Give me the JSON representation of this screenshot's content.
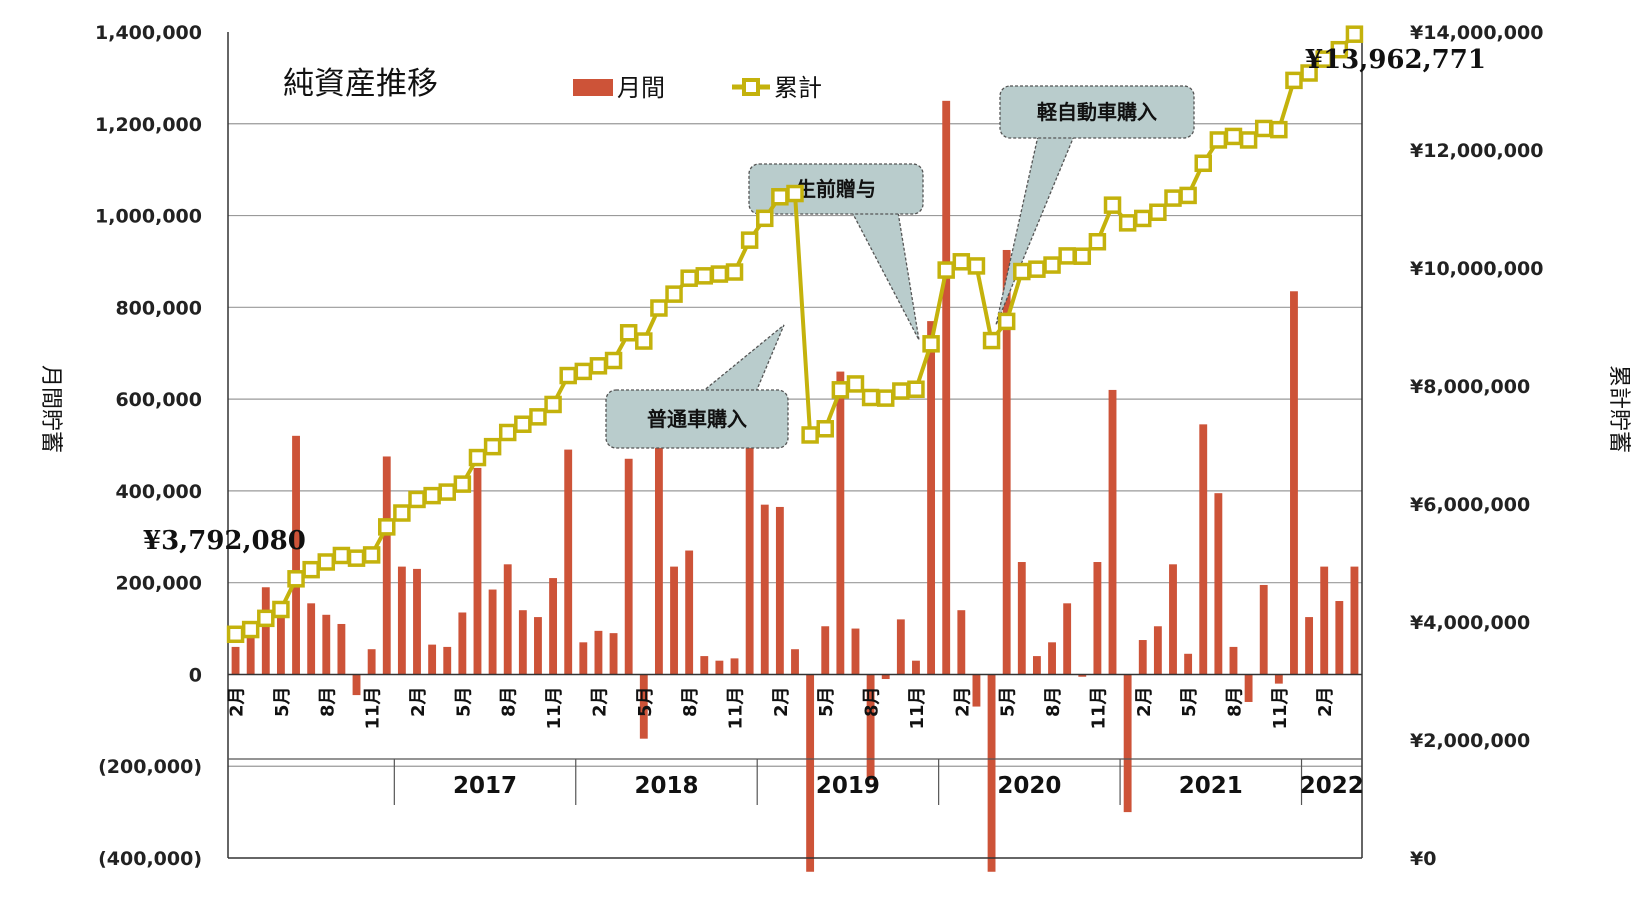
{
  "chart_data": {
    "type": "bar+line",
    "title": "純資産推移",
    "legend": {
      "placement": "top",
      "entries": [
        "月間",
        "累計"
      ]
    },
    "y_left": {
      "label": "月間貯蓄",
      "range": [
        -400000,
        1400000
      ],
      "ticks": [
        "(400,000)",
        "(200,000)",
        "0",
        "200,000",
        "400,000",
        "600,000",
        "800,000",
        "1,000,000",
        "1,200,000",
        "1,400,000"
      ]
    },
    "y_right": {
      "label": "累計貯蓄",
      "range": [
        0,
        14000000
      ],
      "ticks": [
        "¥0",
        "¥2,000,000",
        "¥4,000,000",
        "¥6,000,000",
        "¥8,000,000",
        "¥10,000,000",
        "¥12,000,000",
        "¥14,000,000"
      ]
    },
    "grid": true,
    "colors": {
      "bar": "#cd5338",
      "line": "#c4b20c",
      "marker_fill": "#ffffff",
      "callout_fill": "#b9cccc",
      "callout_stroke": "#555555"
    },
    "month_labels": [
      "2月",
      "5月",
      "8月",
      "11月"
    ],
    "years": [
      "2017",
      "2018",
      "2019",
      "2020",
      "2021",
      "2022"
    ],
    "series": [
      {
        "name": "月間",
        "type": "bar",
        "values": [
          60000,
          80000,
          190000,
          150000,
          520000,
          155000,
          130000,
          110000,
          -45000,
          55000,
          475000,
          235000,
          230000,
          65000,
          60000,
          135000,
          450000,
          185000,
          240000,
          140000,
          125000,
          210000,
          490000,
          70000,
          95000,
          90000,
          470000,
          -140000,
          560000,
          235000,
          270000,
          40000,
          30000,
          35000,
          540000,
          370000,
          365000,
          55000,
          -430000,
          105000,
          660000,
          100000,
          -230000,
          -10000,
          120000,
          30000,
          770000,
          1250000,
          140000,
          -70000,
          -430000,
          925000,
          245000,
          40000,
          70000,
          155000,
          -5000,
          245000,
          620000,
          -300000,
          75000,
          105000,
          240000,
          45000,
          545000,
          395000,
          60000,
          -60000,
          195000,
          -20000,
          835000,
          125000,
          235000,
          160000,
          235000
        ]
      },
      {
        "name": "累計",
        "type": "line",
        "values": [
          3792080,
          3872080,
          4062080,
          4212080,
          4732080,
          4887080,
          5017080,
          5127080,
          5082080,
          5137080,
          5612080,
          5847080,
          6077080,
          6142080,
          6202080,
          6337080,
          6787080,
          6972080,
          7212080,
          7352080,
          7477080,
          7687080,
          8177080,
          8247080,
          8342080,
          8432080,
          8902080,
          8762080,
          9322080,
          9557080,
          9827080,
          9867080,
          9897080,
          9932080,
          10472080,
          10842080,
          11207080,
          11262080,
          7170000,
          7275000,
          7935000,
          8035000,
          7805000,
          7795000,
          7915000,
          7945000,
          8715000,
          9965000,
          10105000,
          10035000,
          8770000,
          9095000,
          9940000,
          9980000,
          10050000,
          10205000,
          10200000,
          10445000,
          11065000,
          10765000,
          10840000,
          10945000,
          11185000,
          11230000,
          11775000,
          12170000,
          12230000,
          12170000,
          12365000,
          12345000,
          13180000,
          13305000,
          13540000,
          13700000,
          13962771
        ]
      }
    ],
    "annotations": {
      "start_value": "¥3,792,080",
      "end_value": "¥13,962,771",
      "callouts": [
        "普通車購入",
        "生前贈与",
        "軽自動車購入"
      ]
    }
  }
}
